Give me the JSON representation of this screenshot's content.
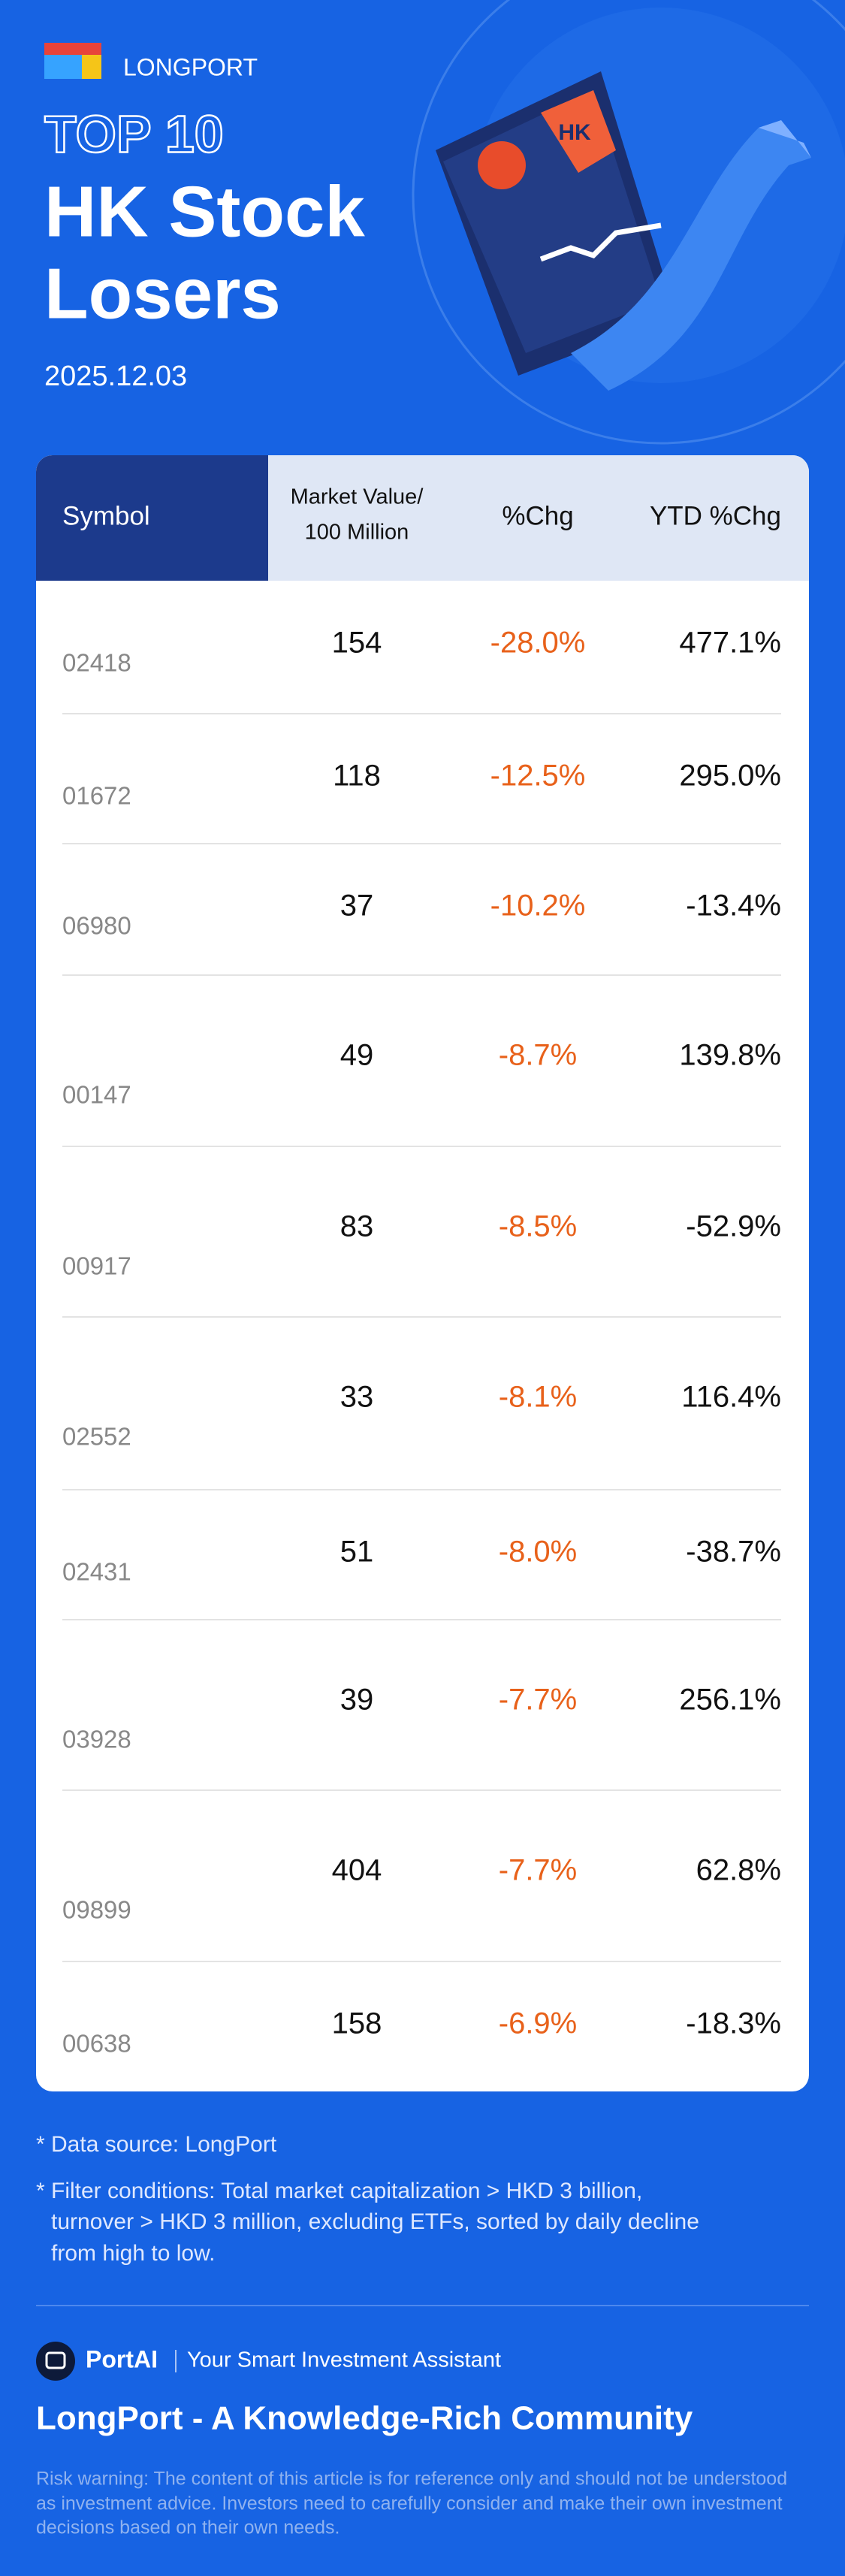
{
  "header": {
    "brand": "LONGPORT",
    "top": "TOP 10",
    "title_lines": [
      "HK Stock",
      "Losers"
    ],
    "date": "2025.12.03"
  },
  "table": {
    "columns": [
      [
        "Symbol"
      ],
      [
        "Market Value/",
        "100 Million"
      ],
      [
        "%Chg"
      ],
      [
        "YTD %Chg"
      ]
    ],
    "rows": [
      [
        "02418",
        "154",
        "-28.0%",
        "477.1%"
      ],
      [
        "01672",
        "118",
        "-12.5%",
        "295.0%"
      ],
      [
        "06980",
        "37",
        "-10.2%",
        "-13.4%"
      ],
      [
        "00147",
        "49",
        "-8.7%",
        "139.8%"
      ],
      [
        "00917",
        "83",
        "-8.5%",
        "-52.9%"
      ],
      [
        "02552",
        "33",
        "-8.1%",
        "116.4%"
      ],
      [
        "02431",
        "51",
        "-8.0%",
        "-38.7%"
      ],
      [
        "03928",
        "39",
        "-7.7%",
        "256.1%"
      ],
      [
        "09899",
        "404",
        "-7.7%",
        "62.8%"
      ],
      [
        "00638",
        "158",
        "-6.9%",
        "-18.3%"
      ]
    ]
  },
  "footer": {
    "source": "* Data source: LongPort",
    "filter_lines": [
      "* Filter conditions: Total market capitalization > HKD 3 billion,",
      "turnover > HKD 3 million, excluding ETFs, sorted by daily decline",
      "from high to low."
    ],
    "portai": "PortAI",
    "tagline": "Your Smart Investment Assistant",
    "community": "LongPort - A Knowledge-Rich Community",
    "risk_lines": [
      "Risk warning: The content of this article is for reference only and should not be understood",
      "as investment advice. Investors need to carefully consider and make their own investment",
      "decisions based on their own needs."
    ]
  }
}
